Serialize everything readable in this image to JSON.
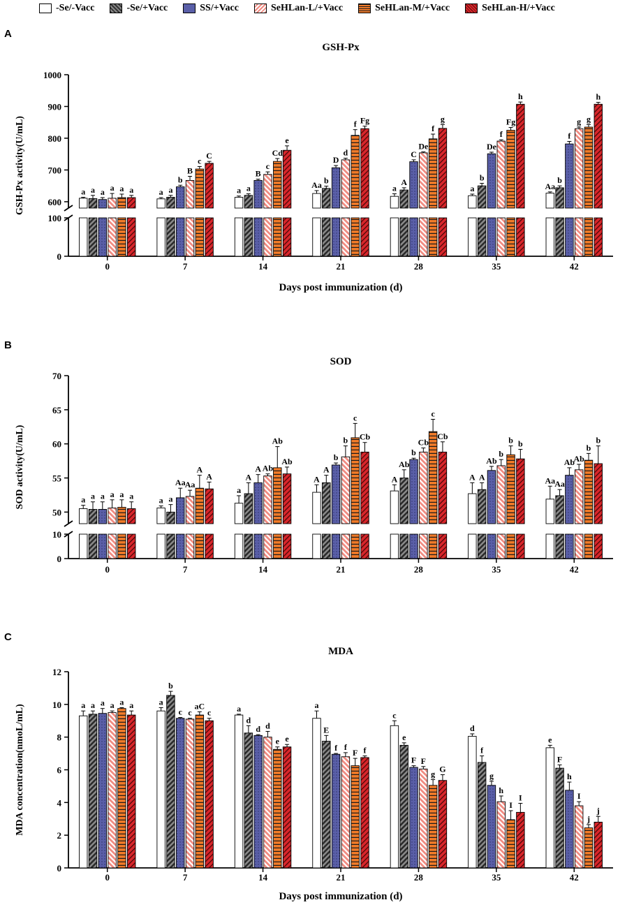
{
  "legend": [
    {
      "name": "-Se/-Vacc",
      "color": "#ffffff",
      "pattern": "none"
    },
    {
      "name": "-Se/+Vacc",
      "color": "#555555",
      "pattern": "check"
    },
    {
      "name": "SS/+Vacc",
      "color": "#5a5fa8",
      "pattern": "dots"
    },
    {
      "name": "SeHLan-L/+Vacc",
      "color": "#f08a80",
      "pattern": "diag"
    },
    {
      "name": "SeHLan-M/+Vacc",
      "color": "#f07a28",
      "pattern": "horiz"
    },
    {
      "name": "SeHLan-H/+Vacc",
      "color": "#d8262b",
      "pattern": "revdiag"
    }
  ],
  "chart_data": [
    {
      "panel": "A",
      "type": "bar",
      "title": "GSH-Px",
      "xlabel": "Days post immunization (d)",
      "ylabel": "GSH-Px activity(U/mL)",
      "categories": [
        "0",
        "7",
        "14",
        "21",
        "28",
        "35",
        "42"
      ],
      "axis_break": {
        "lower": [
          0,
          100
        ],
        "upper": [
          580,
          1000
        ],
        "lower_ticks": [
          0,
          100
        ],
        "upper_ticks": [
          600,
          700,
          800,
          900,
          1000
        ]
      },
      "series": [
        {
          "name": "-Se/-Vacc",
          "values": [
            611,
            609,
            614,
            626,
            617,
            619,
            627
          ],
          "errors": [
            3,
            4,
            4,
            9,
            8,
            5,
            4
          ],
          "labels": [
            "a",
            "a",
            "a",
            "Aa",
            "a",
            "a",
            "Aa"
          ]
        },
        {
          "name": "-Se/+Vacc",
          "values": [
            610,
            614,
            620,
            642,
            637,
            650,
            644
          ],
          "errors": [
            10,
            6,
            5,
            7,
            7,
            8,
            6
          ],
          "labels": [
            "a",
            "a",
            "a",
            "b",
            "A",
            "b",
            "b"
          ]
        },
        {
          "name": "SS/+Vacc",
          "values": [
            607,
            647,
            667,
            707,
            726,
            751,
            782
          ],
          "errors": [
            6,
            5,
            4,
            7,
            6,
            5,
            8
          ],
          "labels": [
            "a",
            "b",
            "B",
            "D",
            "C",
            "De",
            "f"
          ]
        },
        {
          "name": "SeHLan-L/+Vacc",
          "values": [
            611,
            667,
            686,
            732,
            754,
            791,
            830
          ],
          "errors": [
            15,
            13,
            8,
            5,
            3,
            4,
            5
          ],
          "labels": [
            "a",
            "B",
            "c",
            "d",
            "De",
            "f",
            "g"
          ]
        },
        {
          "name": "SeHLan-M/+Vacc",
          "values": [
            613,
            703,
            727,
            809,
            798,
            825,
            835
          ],
          "errors": [
            11,
            8,
            9,
            18,
            15,
            9,
            8
          ],
          "labels": [
            "a",
            "c",
            "Cd",
            "f",
            "f",
            "Fg",
            "g"
          ]
        },
        {
          "name": "SeHLan-H/+Vacc",
          "values": [
            613,
            721,
            762,
            830,
            831,
            907,
            907
          ],
          "errors": [
            7,
            6,
            14,
            8,
            12,
            7,
            6
          ],
          "labels": [
            "a",
            "C",
            "e",
            "Fg",
            "g",
            "h",
            "h"
          ]
        }
      ]
    },
    {
      "panel": "B",
      "type": "bar",
      "title": "SOD",
      "xlabel": "",
      "ylabel": "SOD activity(U/mL)",
      "categories": [
        "0",
        "7",
        "14",
        "21",
        "28",
        "35",
        "42"
      ],
      "axis_break": {
        "lower": [
          0,
          10
        ],
        "upper": [
          48.3,
          70
        ],
        "lower_ticks": [
          0,
          10
        ],
        "upper_ticks": [
          50,
          55,
          60,
          65,
          70
        ]
      },
      "series": [
        {
          "name": "-Se/-Vacc",
          "values": [
            50.5,
            50.6,
            51.3,
            52.9,
            53.1,
            52.7,
            51.9
          ],
          "errors": [
            0.5,
            0.3,
            1.1,
            1.1,
            0.9,
            1.6,
            1.9
          ],
          "labels": [
            "a",
            "a",
            "a",
            "A",
            "A",
            "A",
            "Aa"
          ]
        },
        {
          "name": "-Se/+Vacc",
          "values": [
            50.4,
            50.0,
            52.7,
            54.3,
            55.0,
            53.3,
            52.4
          ],
          "errors": [
            1.1,
            1.1,
            1.6,
            1.1,
            1.2,
            1.0,
            0.9
          ],
          "labels": [
            "a",
            "a",
            "A",
            "A",
            "Ab",
            "A",
            "Aa"
          ]
        },
        {
          "name": "SS/+Vacc",
          "values": [
            50.4,
            52.1,
            54.3,
            56.9,
            57.7,
            56.1,
            55.4
          ],
          "errors": [
            1.1,
            1.4,
            1.2,
            0.3,
            0.2,
            0.6,
            1.1
          ],
          "labels": [
            "a",
            "Aa",
            "A",
            "b",
            "b",
            "Ab",
            "Ab"
          ]
        },
        {
          "name": "SeHLan-L/+Vacc",
          "values": [
            50.6,
            52.3,
            55.3,
            58.1,
            58.8,
            56.8,
            56.2
          ],
          "errors": [
            1.2,
            0.9,
            0.3,
            1.6,
            0.6,
            0.9,
            0.8
          ],
          "labels": [
            "a",
            "Aa",
            "Ab",
            "b",
            "Cb",
            "b",
            "Ab"
          ]
        },
        {
          "name": "SeHLan-M/+Vacc",
          "values": [
            50.7,
            53.5,
            56.5,
            60.9,
            61.8,
            58.4,
            57.6
          ],
          "errors": [
            1.1,
            1.9,
            3.1,
            2.1,
            1.8,
            1.3,
            1.0
          ],
          "labels": [
            "a",
            "A",
            "Ab",
            "c",
            "c",
            "b",
            "b"
          ]
        },
        {
          "name": "SeHLan-H/+Vacc",
          "values": [
            50.5,
            53.4,
            55.6,
            58.8,
            58.8,
            57.8,
            57.1
          ],
          "errors": [
            1.0,
            1.0,
            1.0,
            1.4,
            1.5,
            1.4,
            2.6
          ],
          "labels": [
            "a",
            "A",
            "Ab",
            "Cb",
            "Cb",
            "b",
            "b"
          ]
        }
      ]
    },
    {
      "panel": "C",
      "type": "bar",
      "title": "MDA",
      "xlabel": "Days post immunization (d)",
      "ylabel": "MDA concentration(nmoL/mL)",
      "categories": [
        "0",
        "7",
        "14",
        "21",
        "28",
        "35",
        "42"
      ],
      "ylim": [
        0,
        12
      ],
      "yticks": [
        0,
        2,
        4,
        6,
        8,
        10,
        12
      ],
      "series": [
        {
          "name": "-Se/-Vacc",
          "values": [
            9.3,
            9.6,
            9.35,
            9.15,
            8.7,
            8.05,
            7.35
          ],
          "errors": [
            0.3,
            0.2,
            0.05,
            0.45,
            0.3,
            0.15,
            0.15
          ],
          "labels": [
            "a",
            "a",
            "a",
            "a",
            "c",
            "d",
            "e"
          ]
        },
        {
          "name": "-Se/+Vacc",
          "values": [
            9.4,
            10.55,
            8.25,
            7.75,
            7.5,
            6.45,
            6.1
          ],
          "errors": [
            0.2,
            0.25,
            0.45,
            0.35,
            0.15,
            0.4,
            0.2
          ],
          "labels": [
            "a",
            "b",
            "d",
            "E",
            "e",
            "f",
            "F"
          ]
        },
        {
          "name": "SS/+Vacc",
          "values": [
            9.45,
            9.15,
            8.1,
            6.95,
            6.15,
            5.05,
            4.75
          ],
          "errors": [
            0.3,
            0.05,
            0.05,
            0.05,
            0.1,
            0.25,
            0.5
          ],
          "labels": [
            "a",
            "c",
            "d",
            "f",
            "F",
            "g",
            "h"
          ]
        },
        {
          "name": "SeHLan-L/+Vacc",
          "values": [
            9.5,
            9.1,
            8.0,
            6.8,
            6.05,
            4.05,
            3.8
          ],
          "errors": [
            0.1,
            0.05,
            0.35,
            0.25,
            0.15,
            0.35,
            0.25
          ],
          "labels": [
            "a",
            "c",
            "d",
            "f",
            "F",
            "h",
            "I"
          ]
        },
        {
          "name": "SeHLan-M/+Vacc",
          "values": [
            9.75,
            9.35,
            7.25,
            6.25,
            5.05,
            2.95,
            2.45
          ],
          "errors": [
            0.05,
            0.2,
            0.15,
            0.45,
            0.35,
            0.55,
            0.2
          ],
          "labels": [
            "a",
            "aC",
            "e",
            "F",
            "g",
            "I",
            "j"
          ]
        },
        {
          "name": "SeHLan-H/+Vacc",
          "values": [
            9.35,
            9.0,
            7.4,
            6.75,
            5.35,
            3.4,
            2.8
          ],
          "errors": [
            0.25,
            0.15,
            0.15,
            0.1,
            0.35,
            0.55,
            0.35
          ],
          "labels": [
            "a",
            "c",
            "e",
            "f",
            "G",
            "I",
            "j"
          ]
        }
      ]
    }
  ]
}
